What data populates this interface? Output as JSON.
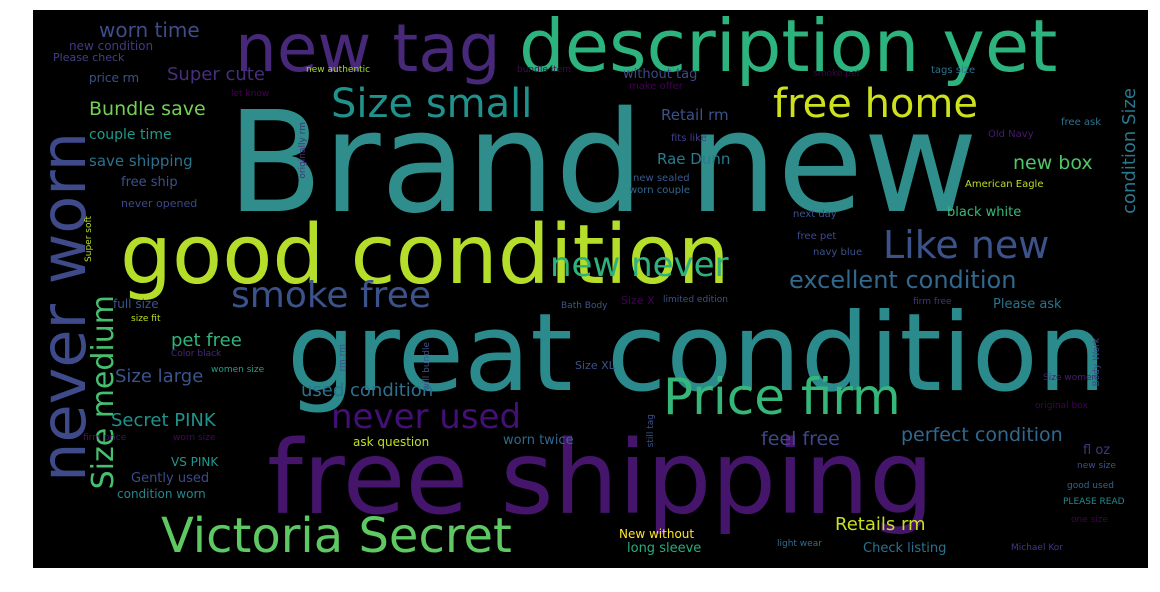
{
  "words": [
    {
      "id": "brand-new",
      "text": "Brand new",
      "color": "#2f8e8c"
    },
    {
      "id": "great-condition",
      "text": "great condition",
      "color": "#2b8a8c"
    },
    {
      "id": "free-shipping",
      "text": "free shipping",
      "color": "#45156b"
    },
    {
      "id": "good-condition",
      "text": "good condition",
      "color": "#b5de2b"
    },
    {
      "id": "description-yet",
      "text": "description yet",
      "color": "#2db37e"
    },
    {
      "id": "new-tag",
      "text": "new tag",
      "color": "#482878"
    },
    {
      "id": "never-worn",
      "text": "never worn",
      "color": "#3e4a89"
    },
    {
      "id": "victoria-secret",
      "text": "Victoria Secret",
      "color": "#5ec962"
    },
    {
      "id": "price-firm",
      "text": "Price firm",
      "color": "#35b779"
    },
    {
      "id": "free-home",
      "text": "free home",
      "color": "#cde11d"
    },
    {
      "id": "like-new",
      "text": "Like new",
      "color": "#3b528b"
    },
    {
      "id": "size-small",
      "text": "Size small",
      "color": "#21918c"
    },
    {
      "id": "new-never",
      "text": "new never",
      "color": "#2db27d"
    },
    {
      "id": "smoke-free",
      "text": "smoke free",
      "color": "#3b528b"
    },
    {
      "id": "never-used",
      "text": "never used",
      "color": "#440f76"
    },
    {
      "id": "size-medium",
      "text": "Size medium",
      "color": "#46c06f"
    },
    {
      "id": "excellent-condition",
      "text": "excellent condition",
      "color": "#31688e"
    },
    {
      "id": "worn-time",
      "text": "worn time",
      "color": "#3e4c8a"
    },
    {
      "id": "super-cute",
      "text": "Super cute",
      "color": "#472f7d"
    },
    {
      "id": "bundle-save",
      "text": "Bundle save",
      "color": "#73d055"
    },
    {
      "id": "new-box",
      "text": "new box",
      "color": "#52c569"
    },
    {
      "id": "condition-size",
      "text": "condition Size",
      "color": "#2a788e"
    },
    {
      "id": "size-large",
      "text": "Size large",
      "color": "#3a548c"
    },
    {
      "id": "used-condition",
      "text": "used condition",
      "color": "#2d718e"
    },
    {
      "id": "pet-free",
      "text": "pet free",
      "color": "#31b57b"
    },
    {
      "id": "secret-pink",
      "text": "Secret PINK",
      "color": "#20928c"
    },
    {
      "id": "feel-free",
      "text": "feel free",
      "color": "#3f4788"
    },
    {
      "id": "perfect-condition",
      "text": "perfect condition",
      "color": "#31688e"
    },
    {
      "id": "retails-rm",
      "text": "Retails rm",
      "color": "#c8e020"
    },
    {
      "id": "save-shipping",
      "text": "save shipping",
      "color": "#2c728e"
    },
    {
      "id": "rae-dunn",
      "text": "Rae Dunn",
      "color": "#287c8e"
    },
    {
      "id": "retail-rm",
      "text": "Retail rm",
      "color": "#3b528b"
    },
    {
      "id": "free-ship",
      "text": "free ship",
      "color": "#3b518b"
    },
    {
      "id": "couple-time",
      "text": "couple time",
      "color": "#1f9a8a"
    },
    {
      "id": "new-condition",
      "text": "new condition",
      "color": "#453882"
    },
    {
      "id": "please-check",
      "text": "Please check",
      "color": "#424086"
    },
    {
      "id": "price-rm",
      "text": "price rm",
      "color": "#3b528b"
    },
    {
      "id": "new-authentic",
      "text": "new authentic",
      "color": "#a2da37"
    },
    {
      "id": "without-tag",
      "text": "without tag",
      "color": "#3e4989"
    },
    {
      "id": "make-offer",
      "text": "make offer",
      "color": "#440154"
    },
    {
      "id": "bundle-item",
      "text": "bundle item",
      "color": "#46085c"
    },
    {
      "id": "smoke-pet",
      "text": "smoke pet",
      "color": "#440154"
    },
    {
      "id": "tags-size",
      "text": "tags size",
      "color": "#2d708e"
    },
    {
      "id": "let-know",
      "text": "let know",
      "color": "#440154"
    },
    {
      "id": "fits-like",
      "text": "fits like",
      "color": "#424186"
    },
    {
      "id": "old-navy",
      "text": "Old Navy",
      "color": "#481a6c"
    },
    {
      "id": "free-ask",
      "text": "free ask",
      "color": "#2c728e"
    },
    {
      "id": "american-eagle",
      "text": "American Eagle",
      "color": "#bddf26"
    },
    {
      "id": "new-sealed",
      "text": "new sealed",
      "color": "#38598c"
    },
    {
      "id": "worn-couple",
      "text": "worn couple",
      "color": "#30698e"
    },
    {
      "id": "never-opened",
      "text": "never opened",
      "color": "#3e4989"
    },
    {
      "id": "super-soft",
      "text": "Super soft",
      "color": "#b8de29"
    },
    {
      "id": "next-day",
      "text": "next day",
      "color": "#3b528b"
    },
    {
      "id": "free-pet",
      "text": "free pet",
      "color": "#3f4889"
    },
    {
      "id": "navy-blue",
      "text": "navy blue",
      "color": "#3b528b"
    },
    {
      "id": "black-white",
      "text": "black white",
      "color": "#38b977"
    },
    {
      "id": "full-size",
      "text": "full size",
      "color": "#3b528b"
    },
    {
      "id": "size-fit",
      "text": "size fit",
      "color": "#bddf26"
    },
    {
      "id": "bath-body",
      "text": "Bath Body",
      "color": "#38598c"
    },
    {
      "id": "size-x",
      "text": "Size X",
      "color": "#440154"
    },
    {
      "id": "limited-edition",
      "text": "limited edition",
      "color": "#3b528b"
    },
    {
      "id": "firm-free",
      "text": "firm free",
      "color": "#46337e"
    },
    {
      "id": "please-ask",
      "text": "Please ask",
      "color": "#2c728e"
    },
    {
      "id": "color-black",
      "text": "Color black",
      "color": "#472a7a"
    },
    {
      "id": "women-size",
      "text": "women size",
      "color": "#1fa187"
    },
    {
      "id": "size-xl",
      "text": "Size XL",
      "color": "#3b528b"
    },
    {
      "id": "size-women",
      "text": "Size women",
      "color": "#481f70"
    },
    {
      "id": "original-box",
      "text": "original box",
      "color": "#440154"
    },
    {
      "id": "ask-question",
      "text": "ask question",
      "color": "#c2df23"
    },
    {
      "id": "worn-twice",
      "text": "worn twice",
      "color": "#31688e"
    },
    {
      "id": "firm-price",
      "text": "firm price",
      "color": "#471365"
    },
    {
      "id": "worn-size",
      "text": "worn size",
      "color": "#46085c"
    },
    {
      "id": "vs-pink",
      "text": "VS PINK",
      "color": "#1f988b"
    },
    {
      "id": "gently-used",
      "text": "Gently used",
      "color": "#3e4a89"
    },
    {
      "id": "condition-worn",
      "text": "condition worn",
      "color": "#24868e"
    },
    {
      "id": "fl-oz",
      "text": "fl oz",
      "color": "#46327e"
    },
    {
      "id": "new-size",
      "text": "new size",
      "color": "#3b528b"
    },
    {
      "id": "good-used",
      "text": "good used",
      "color": "#32658e"
    },
    {
      "id": "please-read",
      "text": "PLEASE READ",
      "color": "#23898e"
    },
    {
      "id": "one-size",
      "text": "one size",
      "color": "#440154"
    },
    {
      "id": "new-without",
      "text": "New without",
      "color": "#fde725"
    },
    {
      "id": "long-sleeve",
      "text": "long sleeve",
      "color": "#27ad81"
    },
    {
      "id": "light-wear",
      "text": "light wear",
      "color": "#2e6e8e"
    },
    {
      "id": "check-listing",
      "text": "Check listing",
      "color": "#2c728e"
    },
    {
      "id": "michael-kor",
      "text": "Michael Kor",
      "color": "#453781"
    },
    {
      "id": "originally-rm",
      "text": "originally rm",
      "color": "#46327e"
    },
    {
      "id": "rm-rm",
      "text": "rm rm",
      "color": "#3b528b"
    },
    {
      "id": "will-bundle",
      "text": "will bundle",
      "color": "#3b528b"
    },
    {
      "id": "still-tags",
      "text": "still tag",
      "color": "#3b528b"
    },
    {
      "id": "body-work",
      "text": "Body Work",
      "color": "#3e4989"
    }
  ]
}
